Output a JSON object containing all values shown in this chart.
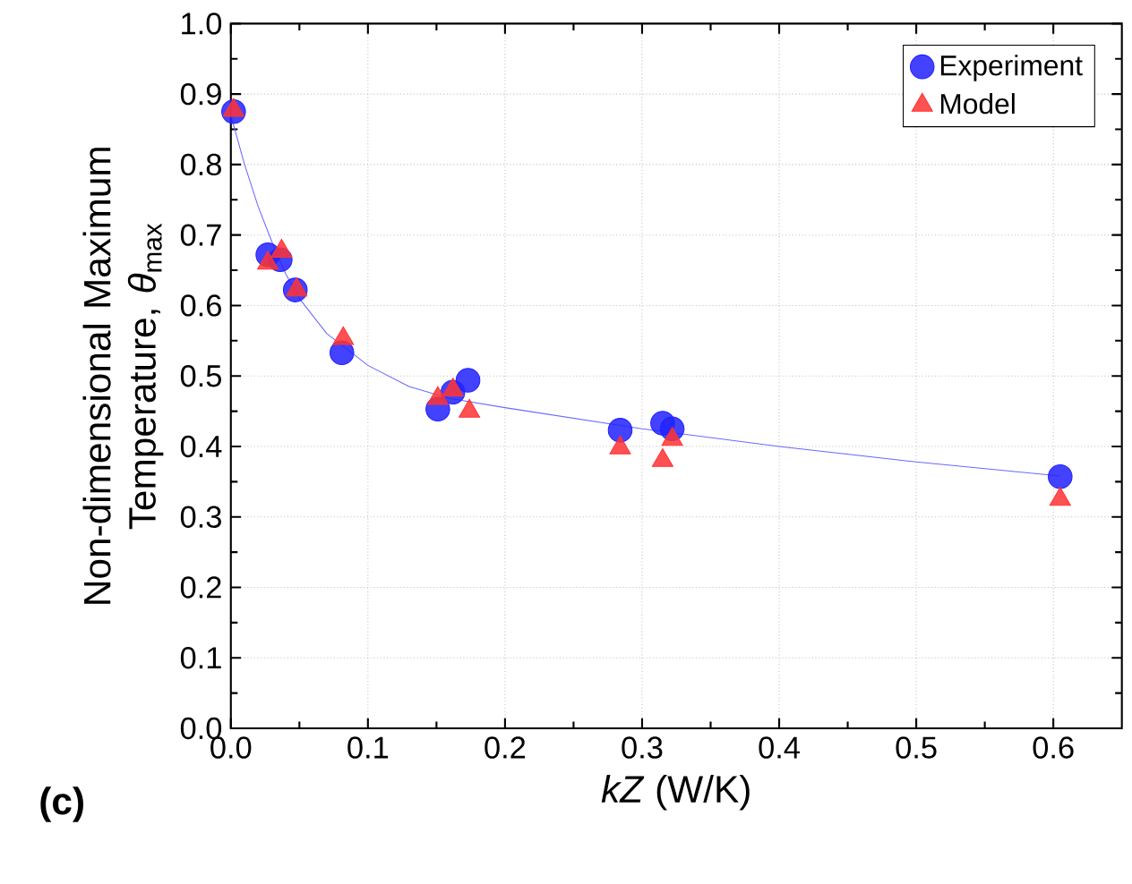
{
  "chart_data": {
    "type": "scatter",
    "xlabel": "*kZ* (W/K)",
    "ylabel": "Non-dimensional Maximum Temperature, *θ*$_{max}$",
    "xlim": [
      0,
      0.65
    ],
    "ylim": [
      0,
      1.0
    ],
    "xticks": [
      {
        "value": 0,
        "label": "0.0"
      },
      0.1,
      0.2,
      0.3,
      0.4,
      0.5,
      0.6
    ],
    "yticks": [
      {
        "value": 0,
        "label": "0.0"
      },
      0.1,
      0.2,
      0.3,
      0.4,
      0.5,
      0.6,
      0.7,
      0.8,
      0.9,
      {
        "value": 1,
        "label": "1.0"
      }
    ],
    "grid": true,
    "legend": "top right",
    "annotations": [
      "(c)"
    ],
    "series": [
      {
        "type": "line",
        "color": "#6a6aff",
        "marker": "none",
        "x": [
          0,
          0.01,
          0.02,
          0.03,
          0.04,
          0.05,
          0.07,
          0.1,
          0.13,
          0.16,
          0.2,
          0.3,
          0.4,
          0.5,
          0.605
        ],
        "values": [
          0.87,
          0.8,
          0.74,
          0.69,
          0.645,
          0.61,
          0.56,
          0.515,
          0.485,
          0.468,
          0.455,
          0.425,
          0.4,
          0.378,
          0.358
        ]
      },
      {
        "name": "Experiment",
        "color": "#2222ff",
        "marker": "circle",
        "x": [
          0.002,
          0.027,
          0.036,
          0.047,
          0.081,
          0.151,
          0.162,
          0.173,
          0.284,
          0.315,
          0.322,
          0.605
        ],
        "values": [
          0.875,
          0.672,
          0.665,
          0.622,
          0.533,
          0.453,
          0.477,
          0.494,
          0.423,
          0.433,
          0.425,
          0.357
        ]
      },
      {
        "name": "Model",
        "color": "#ff3333",
        "marker": "triangle",
        "x": [
          0.002,
          0.027,
          0.037,
          0.048,
          0.082,
          0.151,
          0.162,
          0.174,
          0.284,
          0.315,
          0.322,
          0.605
        ],
        "values": [
          0.877,
          0.66,
          0.677,
          0.622,
          0.553,
          0.468,
          0.48,
          0.45,
          0.398,
          0.38,
          0.41,
          0.325
        ]
      }
    ]
  }
}
